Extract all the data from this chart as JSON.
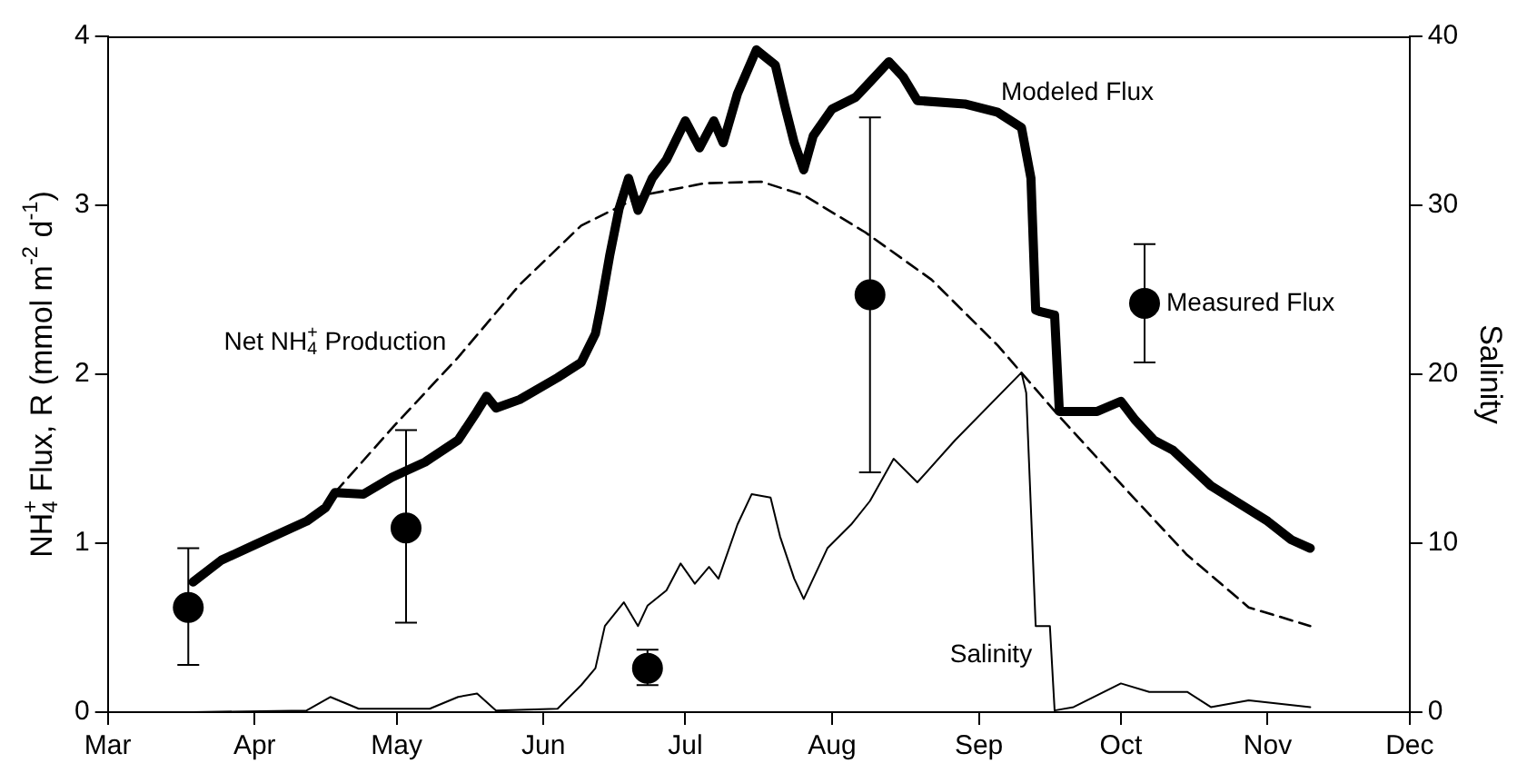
{
  "chart_data": {
    "type": "line",
    "ylabel": "NH$_{4}$$^{+}$ Flux, R (mmol m$^{-2}$ d$^{-1}$)",
    "y2label": "Salinity",
    "xlim": [
      "--03-01",
      "--12-01"
    ],
    "xticks": [
      {
        "value": "--03-01",
        "label": "Mar"
      },
      {
        "value": "--04-01",
        "label": "Apr"
      },
      {
        "value": "--05-01",
        "label": "May"
      },
      {
        "value": "--06-01",
        "label": "Jun"
      },
      {
        "value": "--07-01",
        "label": "Jul"
      },
      {
        "value": "--08-01",
        "label": "Aug"
      },
      {
        "value": "--09-01",
        "label": "Sep"
      },
      {
        "value": "--10-01",
        "label": "Oct"
      },
      {
        "value": "--11-01",
        "label": "Nov"
      },
      {
        "value": "--12-01",
        "label": "Dec"
      }
    ],
    "ylim": [
      0,
      4
    ],
    "yticks": [
      0,
      1,
      2,
      3,
      4
    ],
    "y2lim": [
      0,
      40
    ],
    "y2ticks": [
      0,
      10,
      20,
      30,
      40
    ],
    "grid": false,
    "legend": false,
    "series": [
      {
        "name": "Modeled Flux",
        "color": "#000000",
        "line_style": "solid",
        "x": [
          "--03-19",
          "--03-25",
          "--04-01",
          "--04-12",
          "--04-16",
          "--04-18",
          "--04-24",
          "--04-30",
          "--05-07",
          "--05-14",
          "--05-18",
          "--05-20",
          "--05-22",
          "--05-27",
          "--06-04",
          "--06-09",
          "--06-12",
          "--06-13",
          "--06-15",
          "--06-17",
          "--06-19",
          "--06-21",
          "--06-24",
          "--06-27",
          "--07-01",
          "--07-04",
          "--07-07",
          "--07-09",
          "--07-12",
          "--07-16",
          "--07-20",
          "--07-22",
          "--07-24",
          "--07-26",
          "--07-28",
          "--08-01",
          "--08-06",
          "--08-09",
          "--08-13",
          "--08-16",
          "--08-19",
          "--08-29",
          "--09-05",
          "--09-10",
          "--09-12",
          "--09-13",
          "--09-14",
          "--09-17",
          "--09-18",
          "--09-26",
          "--10-01",
          "--10-04",
          "--10-08",
          "--10-12",
          "--10-20",
          "--10-24",
          "--11-01",
          "--11-06",
          "--11-10"
        ],
        "values": [
          0.77,
          0.9,
          0.99,
          1.13,
          1.21,
          1.3,
          1.29,
          1.39,
          1.48,
          1.61,
          1.78,
          1.87,
          1.8,
          1.85,
          1.98,
          2.07,
          2.24,
          2.38,
          2.7,
          2.98,
          3.16,
          2.97,
          3.16,
          3.27,
          3.5,
          3.34,
          3.5,
          3.37,
          3.66,
          3.92,
          3.83,
          3.59,
          3.37,
          3.21,
          3.41,
          3.57,
          3.64,
          3.73,
          3.85,
          3.76,
          3.62,
          3.6,
          3.55,
          3.46,
          3.16,
          2.38,
          2.37,
          2.35,
          1.78,
          1.78,
          1.84,
          1.73,
          1.61,
          1.55,
          1.34,
          1.27,
          1.13,
          1.02,
          0.97
        ]
      },
      {
        "name": "Net NH$_{4}$$^{+}$ Production",
        "color": "#000000",
        "line_style": "dashed",
        "x": [
          "--04-18",
          "--04-30",
          "--05-14",
          "--05-27",
          "--06-09",
          "--06-22",
          "--07-05",
          "--07-17",
          "--07-26",
          "--08-08",
          "--08-22",
          "--09-05",
          "--09-18",
          "--10-02",
          "--10-15",
          "--10-28",
          "--11-10"
        ],
        "values": [
          1.3,
          1.68,
          2.1,
          2.53,
          2.88,
          3.06,
          3.13,
          3.14,
          3.06,
          2.84,
          2.56,
          2.17,
          1.75,
          1.32,
          0.93,
          0.62,
          0.51
        ]
      },
      {
        "name": "Salinity",
        "axis": "y2",
        "color": "#000000",
        "line_style": "solid",
        "x": [
          "--03-19",
          "--04-12",
          "--04-17",
          "--04-23",
          "--05-08",
          "--05-14",
          "--05-18",
          "--05-22",
          "--06-04",
          "--06-09",
          "--06-12",
          "--06-14",
          "--06-18",
          "--06-21",
          "--06-23",
          "--06-27",
          "--06-30",
          "--07-03",
          "--07-06",
          "--07-08",
          "--07-12",
          "--07-15",
          "--07-19",
          "--07-21",
          "--07-24",
          "--07-26",
          "--07-31",
          "--08-05",
          "--08-09",
          "--08-14",
          "--08-19",
          "--08-27",
          "--09-10",
          "--09-11",
          "--09-13",
          "--09-16",
          "--09-17",
          "--09-21",
          "--10-01",
          "--10-07",
          "--10-15",
          "--10-20",
          "--10-28",
          "--11-10"
        ],
        "values": [
          0,
          0.1,
          0.9,
          0.2,
          0.2,
          0.9,
          1.1,
          0.1,
          0.2,
          1.6,
          2.6,
          5.1,
          6.5,
          5.1,
          6.3,
          7.2,
          8.8,
          7.6,
          8.6,
          7.9,
          11.1,
          12.9,
          12.7,
          10.4,
          7.9,
          6.7,
          9.7,
          11.1,
          12.5,
          15,
          13.6,
          16.1,
          20.1,
          18.9,
          5.1,
          5.1,
          0.1,
          0.3,
          1.7,
          1.2,
          1.2,
          0.3,
          0.7,
          0.3
        ]
      },
      {
        "name": "Measured Flux",
        "type": "scatter",
        "marker": "circle",
        "color": "#000000",
        "x": [
          "--03-18",
          "--05-03",
          "--06-23",
          "--08-09",
          "--10-06"
        ],
        "values": [
          0.62,
          1.09,
          0.26,
          2.47,
          2.42
        ],
        "errors": [
          [
            0.28,
            0.97
          ],
          [
            0.53,
            1.67
          ],
          [
            0.16,
            0.37
          ],
          [
            1.42,
            3.52
          ],
          [
            2.07,
            2.77
          ]
        ]
      }
    ]
  }
}
